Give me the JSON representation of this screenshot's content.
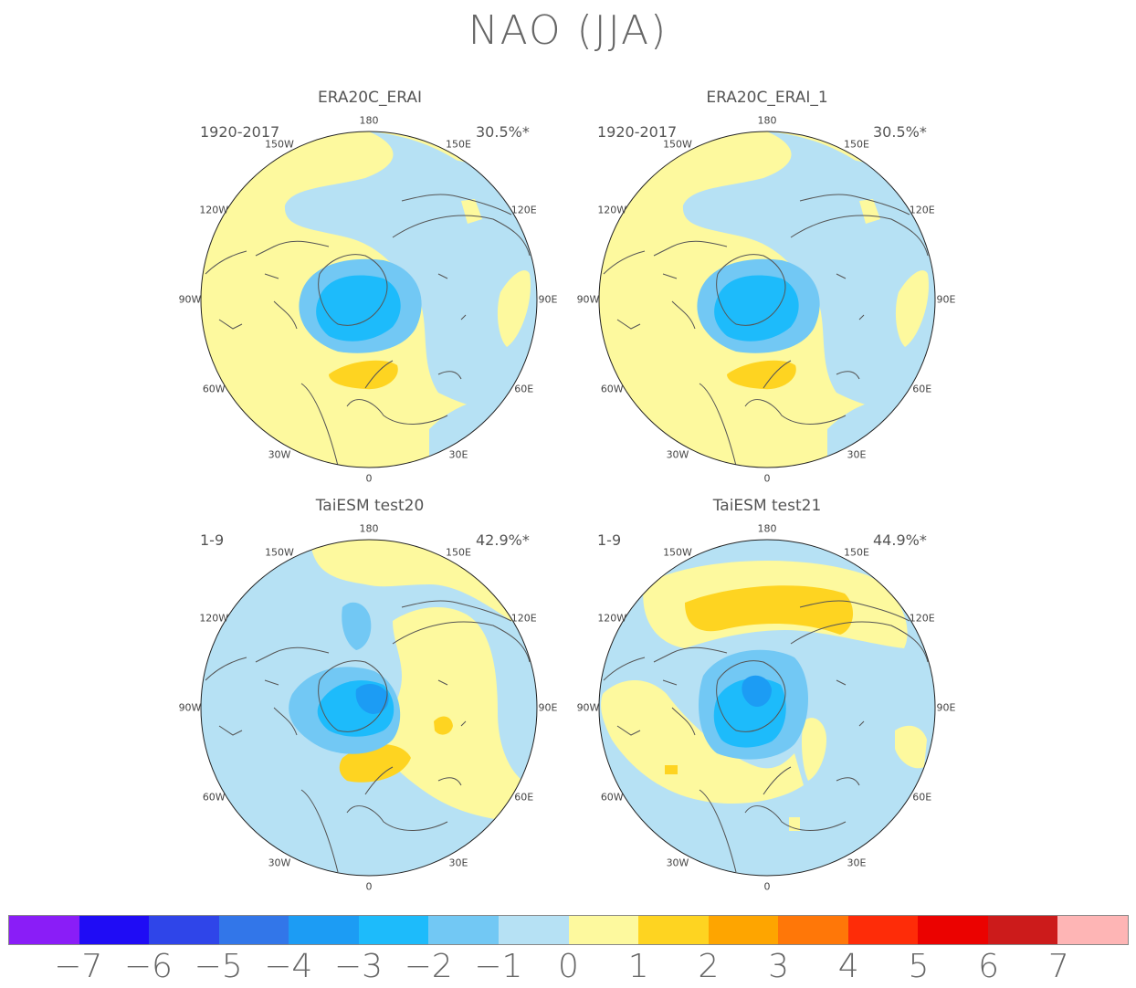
{
  "title": "NAO (JJA)",
  "lon_labels": [
    "180",
    "150E",
    "120E",
    "90E",
    "60E",
    "30E",
    "0",
    "30W",
    "60W",
    "90W",
    "120W",
    "150W"
  ],
  "colors": {
    "neg1": "#b6e1f4",
    "neg2": "#72c8f4",
    "neg3": "#1dbbfb",
    "neg4": "#1c9cf4",
    "pos1": "#fdf99e",
    "pos2": "#fed421",
    "coast": "#555555"
  },
  "panels": [
    {
      "title": "ERA20C_ERAI",
      "period": "1920-2017",
      "variance": "30.5%*"
    },
    {
      "title": "ERA20C_ERAI_1",
      "period": "1920-2017",
      "variance": "30.5%*"
    },
    {
      "title": "TaiESM test20",
      "period": "1-9",
      "variance": "42.9%*"
    },
    {
      "title": "TaiESM test21",
      "period": "1-9",
      "variance": "44.9%*"
    }
  ],
  "colorbar": {
    "colors": [
      "#8a1df7",
      "#1f0cf5",
      "#2f45e9",
      "#3276e9",
      "#1c9cf4",
      "#1dbbfb",
      "#72c8f4",
      "#b6e1f4",
      "#fdf99e",
      "#fed421",
      "#fea500",
      "#ff7708",
      "#fe2c08",
      "#eb0200",
      "#cc1b1b",
      "#feb5b5"
    ],
    "labels": [
      "-7",
      "-6",
      "-5",
      "-4",
      "-3",
      "-2",
      "-1",
      "0",
      "1",
      "2",
      "3",
      "4",
      "5",
      "6",
      "7"
    ]
  }
}
